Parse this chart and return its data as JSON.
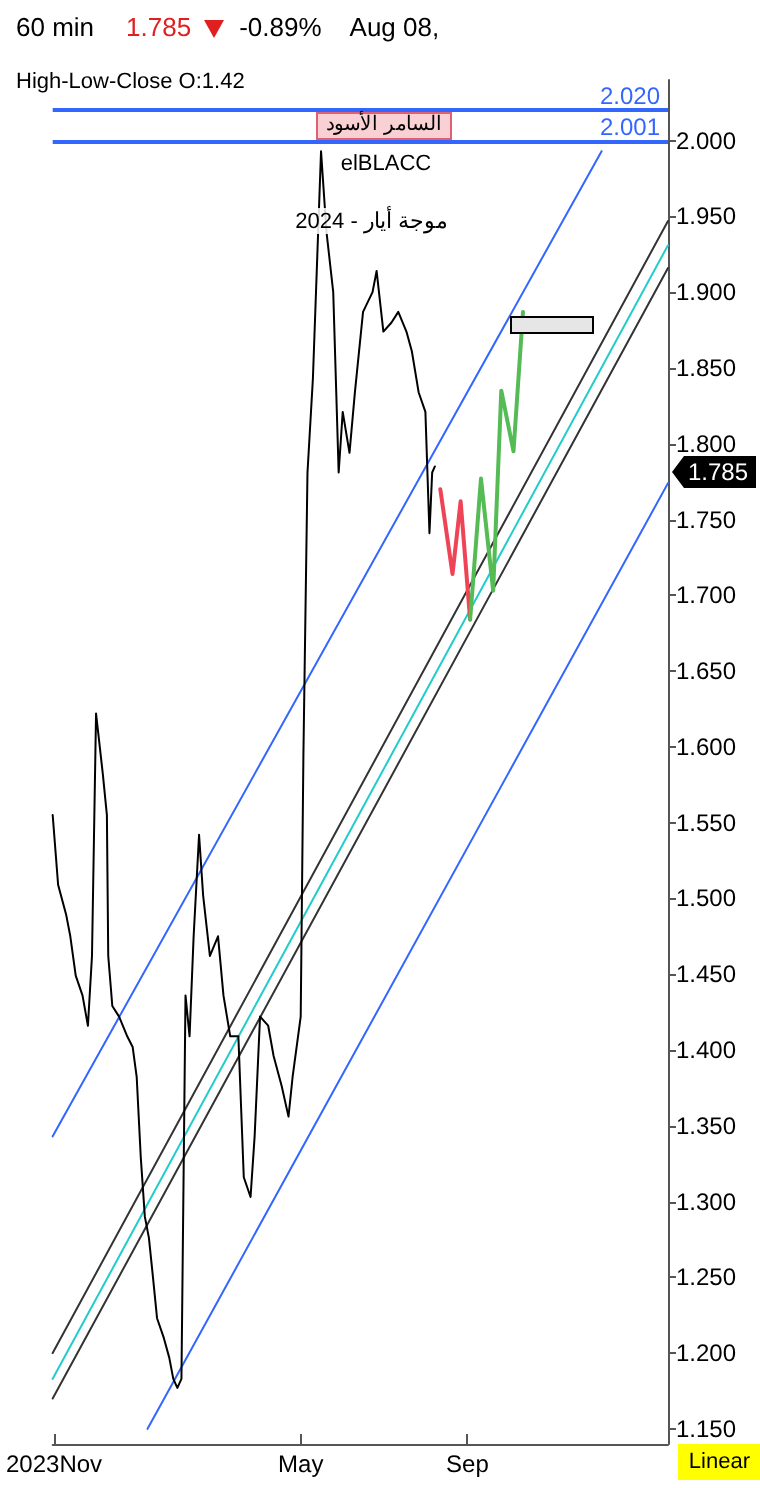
{
  "chart_data": {
    "type": "line",
    "title": "60 min",
    "subtitle": "High-Low-Close   O:1.42",
    "annotations": [
      "1.785",
      "-0.89%",
      "Aug 08,",
      "السامر الأسود",
      "elBLACC",
      "موجة أيار - 2024",
      "Linear",
      "1.785"
    ],
    "xlim": [
      "2023-10-31",
      "2025-01-27"
    ],
    "xticks": [
      {
        "value": "2023-11-01",
        "label": "2023Nov"
      },
      {
        "value": "2024-05-01",
        "label": "May"
      },
      {
        "value": "2024-09-01",
        "label": "Sep"
      }
    ],
    "ylim": [
      1.14,
      2.04
    ],
    "yticks": [
      {
        "value": 1.15,
        "label": "1.150"
      },
      {
        "value": 1.2,
        "label": "1.200"
      },
      {
        "value": 1.25,
        "label": "1.250"
      },
      {
        "value": 1.3,
        "label": "1.300"
      },
      {
        "value": 1.35,
        "label": "1.350"
      },
      {
        "value": 1.4,
        "label": "1.400"
      },
      {
        "value": 1.45,
        "label": "1.450"
      },
      {
        "value": 1.5,
        "label": "1.500"
      },
      {
        "value": 1.55,
        "label": "1.550"
      },
      {
        "value": 1.6,
        "label": "1.600"
      },
      {
        "value": 1.65,
        "label": "1.650"
      },
      {
        "value": 1.7,
        "label": "1.700"
      },
      {
        "value": 1.75,
        "label": "1.750"
      },
      {
        "value": 1.8,
        "label": "1.800"
      },
      {
        "value": 1.85,
        "label": "1.850"
      },
      {
        "value": 1.9,
        "label": "1.900"
      },
      {
        "value": 1.95,
        "label": "1.950"
      },
      {
        "value": 2.0,
        "label": "2.000"
      }
    ],
    "grid": false,
    "marker": "none",
    "line_style": "solid",
    "ref_lines": [
      {
        "axis": "y",
        "value": 2.02,
        "label": "2.020",
        "color": "#3366ff"
      },
      {
        "axis": "y",
        "value": 2.001,
        "label": "2.001",
        "color": "#3366ff"
      }
    ],
    "series": [
      {
        "color": "#000000",
        "x": [
          "2023-10-31",
          "2023-11-04",
          "2023-11-10",
          "2023-11-13",
          "2023-11-17",
          "2023-11-22",
          "2023-11-26",
          "2023-11-29",
          "2023-12-02",
          "2023-12-07",
          "2023-12-10",
          "2023-12-11",
          "2023-12-14",
          "2023-12-19",
          "2023-12-25",
          "2023-12-29",
          "2024-01-01",
          "2024-01-04",
          "2024-01-07",
          "2024-01-10",
          "2024-01-13",
          "2024-01-16",
          "2024-01-21",
          "2024-01-25",
          "2024-01-28",
          "2024-01-31",
          "2024-02-03",
          "2024-02-06",
          "2024-02-09",
          "2024-02-12",
          "2024-02-16",
          "2024-02-19",
          "2024-02-24",
          "2024-03-01",
          "2024-03-05",
          "2024-03-10",
          "2024-03-16",
          "2024-03-20",
          "2024-03-25",
          "2024-03-28",
          "2024-04-01",
          "2024-04-07",
          "2024-04-11",
          "2024-04-17",
          "2024-04-22",
          "2024-04-25",
          "2024-05-01",
          "2024-05-03",
          "2024-05-06",
          "2024-05-10",
          "2024-05-16",
          "2024-05-20",
          "2024-05-25",
          "2024-05-29",
          "2024-06-01",
          "2024-06-06",
          "2024-06-10",
          "2024-06-16",
          "2024-06-23",
          "2024-06-26",
          "2024-07-01",
          "2024-07-07",
          "2024-07-12",
          "2024-07-18",
          "2024-07-22",
          "2024-07-27",
          "2024-08-01",
          "2024-08-04",
          "2024-08-06",
          "2024-08-08"
        ],
        "values": [
          1.555,
          1.509,
          1.489,
          1.475,
          1.449,
          1.436,
          1.416,
          1.462,
          1.622,
          1.582,
          1.555,
          1.462,
          1.429,
          1.422,
          1.409,
          1.402,
          1.382,
          1.329,
          1.29,
          1.276,
          1.25,
          1.223,
          1.21,
          1.197,
          1.183,
          1.177,
          1.183,
          1.436,
          1.409,
          1.475,
          1.542,
          1.502,
          1.462,
          1.475,
          1.436,
          1.409,
          1.409,
          1.316,
          1.303,
          1.343,
          1.422,
          1.416,
          1.396,
          1.376,
          1.356,
          1.382,
          1.422,
          1.595,
          1.781,
          1.843,
          1.993,
          1.94,
          1.9,
          1.781,
          1.821,
          1.794,
          1.834,
          1.887,
          1.9,
          1.914,
          1.874,
          1.88,
          1.887,
          1.874,
          1.861,
          1.834,
          1.821,
          1.741,
          1.781,
          1.785
        ]
      },
      {
        "color": "#3366ff",
        "x": [
          "2023-10-31",
          "2024-12-09"
        ],
        "values": [
          1.343,
          1.993
        ]
      },
      {
        "color": "#3366ff",
        "x": [
          "2024-01-09",
          "2025-01-27"
        ],
        "values": [
          1.15,
          1.774
        ]
      },
      {
        "color": "#333333",
        "x": [
          "2023-10-31",
          "2025-01-27"
        ],
        "values": [
          1.2,
          1.947
        ]
      },
      {
        "color": "#22cccc",
        "x": [
          "2023-10-31",
          "2025-01-27"
        ],
        "values": [
          1.183,
          1.931
        ]
      },
      {
        "color": "#333333",
        "x": [
          "2023-10-31",
          "2025-01-27"
        ],
        "values": [
          1.17,
          1.916
        ]
      },
      {
        "color": "#ee4455",
        "x": [
          "2024-08-12",
          "2024-08-21",
          "2024-08-27",
          "2024-09-03"
        ],
        "values": [
          1.77,
          1.714,
          1.762,
          1.684
        ]
      },
      {
        "color": "#55bb55",
        "x": [
          "2024-09-03",
          "2024-09-11",
          "2024-09-20",
          "2024-09-26",
          "2024-10-05",
          "2024-10-12"
        ],
        "values": [
          1.684,
          1.777,
          1.703,
          1.835,
          1.795,
          1.887
        ]
      }
    ]
  }
}
